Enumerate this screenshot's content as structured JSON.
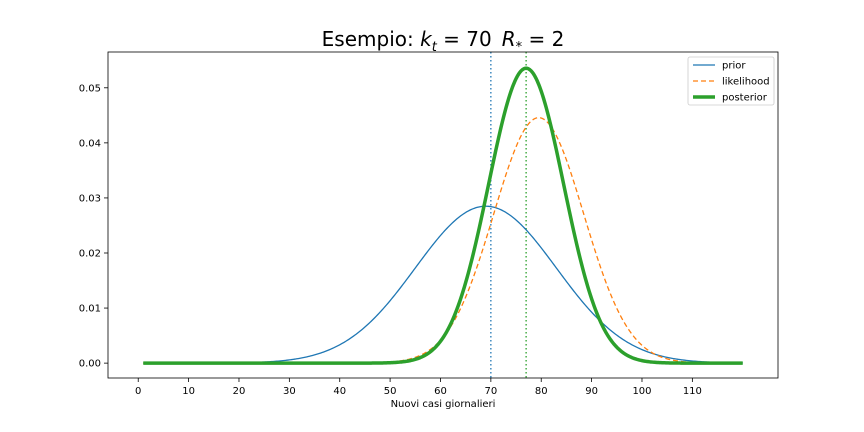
{
  "chart_data": {
    "type": "line",
    "title": "Esempio: k_t = 70  R_* = 2",
    "title_parts": {
      "prefix": "Esempio: ",
      "k": "k",
      "k_sub": "t",
      "k_eq": " = 70",
      "r": "R",
      "r_sub": "*",
      "r_eq": " = 2"
    },
    "xlabel": "Nuovi casi giornalieri",
    "ylabel": "",
    "xlim": [
      -6,
      127
    ],
    "ylim": [
      -0.0027,
      0.0565
    ],
    "xticks": [
      0,
      10,
      20,
      30,
      40,
      50,
      60,
      70,
      80,
      90,
      100,
      110
    ],
    "xtick_labels": [
      "0",
      "10",
      "20",
      "30",
      "40",
      "50",
      "60",
      "70",
      "80",
      "90",
      "100",
      "110"
    ],
    "yticks": [
      0.0,
      0.01,
      0.02,
      0.03,
      0.04,
      0.05
    ],
    "ytick_labels": [
      "0.00",
      "0.01",
      "0.02",
      "0.03",
      "0.04",
      "0.05"
    ],
    "x_range": [
      1,
      120
    ],
    "legend_position": "top-right",
    "grid": false,
    "series": [
      {
        "name": "prior",
        "distribution": "normal",
        "mean": 69,
        "sd": 14,
        "color": "#1f77b4",
        "style": "solid",
        "width": 1.3
      },
      {
        "name": "likelihood",
        "distribution": "normal",
        "mean": 79.5,
        "sd": 8.95,
        "color": "#ff7f0e",
        "style": "dashed",
        "width": 1.3
      },
      {
        "name": "posterior",
        "distribution": "normal",
        "mean": 77,
        "sd": 7.45,
        "color": "#2ca02c",
        "style": "solid",
        "width": 3.5
      }
    ],
    "vlines": [
      {
        "x": 70,
        "color": "#1f77b4",
        "style": "dotted"
      },
      {
        "x": 77,
        "color": "#2ca02c",
        "style": "dotted"
      }
    ]
  }
}
